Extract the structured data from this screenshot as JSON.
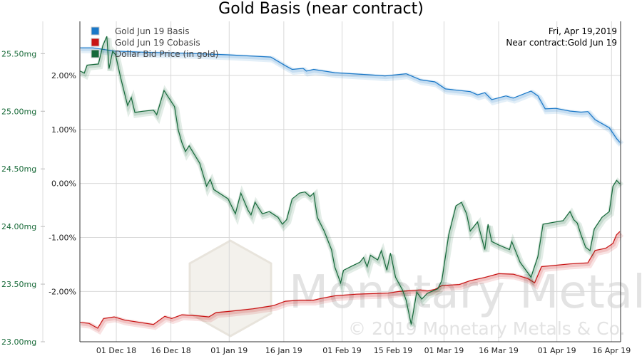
{
  "chart_data": {
    "type": "line",
    "title": "Gold Basis (near contract)",
    "xlabel": "",
    "x_unit": "days since 21 Nov 18",
    "xlim": [
      0,
      148.5
    ],
    "x_ticks": [
      {
        "label": "01 Dec 18",
        "x": 10
      },
      {
        "label": "16 Dec 18",
        "x": 25
      },
      {
        "label": "01 Jan 19",
        "x": 41
      },
      {
        "label": "16 Jan 19",
        "x": 56
      },
      {
        "label": "01 Feb 19",
        "x": 72
      },
      {
        "label": "15 Feb 19",
        "x": 86
      },
      {
        "label": "01 Mar 19",
        "x": 100
      },
      {
        "label": "16 Mar 19",
        "x": 115
      },
      {
        "label": "01 Apr 19",
        "x": 131
      },
      {
        "label": "16 Apr 19",
        "x": 146
      }
    ],
    "y_pct": {
      "ylim": [
        -2.93,
        3.0
      ],
      "ticks": [
        {
          "label": "2.00%",
          "v": 2
        },
        {
          "label": "1.00%",
          "v": 1
        },
        {
          "label": "0.00%",
          "v": 0
        },
        {
          "label": "-1.00%",
          "v": -1
        },
        {
          "label": "-2.00%",
          "v": -2
        }
      ]
    },
    "y_mg": {
      "ylim": [
        23.0,
        25.78
      ],
      "ticks": [
        {
          "label": "25.50mg",
          "v": 25.5
        },
        {
          "label": "25.00mg",
          "v": 25.0
        },
        {
          "label": "24.50mg",
          "v": 24.5
        },
        {
          "label": "24.00mg",
          "v": 24.0
        },
        {
          "label": "23.50mg",
          "v": 23.5
        },
        {
          "label": "23.00mg",
          "v": 23.0
        }
      ]
    },
    "grid": true,
    "legend_position": "top-left",
    "series": [
      {
        "name": "Gold Jun 19 Basis",
        "axis": "pct",
        "color": "#1a78c8",
        "points": [
          [
            0,
            2.51
          ],
          [
            3.5,
            2.51
          ],
          [
            9.4,
            2.45
          ],
          [
            17.2,
            2.43
          ],
          [
            29,
            2.41
          ],
          [
            40.7,
            2.38
          ],
          [
            52.4,
            2.34
          ],
          [
            56.4,
            2.18
          ],
          [
            58.3,
            2.11
          ],
          [
            61.3,
            2.13
          ],
          [
            62.2,
            2.08
          ],
          [
            64.2,
            2.11
          ],
          [
            70,
            2.05
          ],
          [
            79.8,
            2.01
          ],
          [
            83.8,
            1.99
          ],
          [
            89.6,
            2.03
          ],
          [
            93.5,
            1.92
          ],
          [
            97.5,
            1.88
          ],
          [
            100.4,
            1.75
          ],
          [
            107.2,
            1.7
          ],
          [
            109.2,
            1.64
          ],
          [
            111.2,
            1.68
          ],
          [
            113.1,
            1.55
          ],
          [
            117,
            1.62
          ],
          [
            119,
            1.58
          ],
          [
            123.9,
            1.71
          ],
          [
            125.8,
            1.62
          ],
          [
            127.8,
            1.38
          ],
          [
            130.7,
            1.39
          ],
          [
            134.6,
            1.34
          ],
          [
            137.6,
            1.32
          ],
          [
            139.5,
            1.33
          ],
          [
            141.5,
            1.18
          ],
          [
            145.4,
            1.03
          ],
          [
            147.4,
            0.83
          ],
          [
            148.3,
            0.76
          ]
        ]
      },
      {
        "name": "Gold Jun 19 Cobasis",
        "axis": "pct",
        "color": "#c81414",
        "points": [
          [
            0,
            -2.57
          ],
          [
            2.5,
            -2.59
          ],
          [
            4.9,
            -2.68
          ],
          [
            6.5,
            -2.5
          ],
          [
            9.4,
            -2.47
          ],
          [
            12.3,
            -2.53
          ],
          [
            20.2,
            -2.61
          ],
          [
            23.3,
            -2.46
          ],
          [
            25.2,
            -2.5
          ],
          [
            28,
            -2.43
          ],
          [
            32.5,
            -2.45
          ],
          [
            35.4,
            -2.47
          ],
          [
            37.4,
            -2.39
          ],
          [
            40.7,
            -2.37
          ],
          [
            47.6,
            -2.32
          ],
          [
            50.5,
            -2.29
          ],
          [
            53.2,
            -2.26
          ],
          [
            56.4,
            -2.18
          ],
          [
            60.3,
            -2.16
          ],
          [
            64.2,
            -2.16
          ],
          [
            66.1,
            -2.13
          ],
          [
            70,
            -2.08
          ],
          [
            76,
            -2.05
          ],
          [
            79.8,
            -2.04
          ],
          [
            84.7,
            -2.03
          ],
          [
            87.6,
            -2.0
          ],
          [
            93.5,
            -1.97
          ],
          [
            95.4,
            -1.99
          ],
          [
            97.5,
            -1.96
          ],
          [
            99.4,
            -1.89
          ],
          [
            104.2,
            -1.87
          ],
          [
            107.2,
            -1.8
          ],
          [
            111.2,
            -1.74
          ],
          [
            115,
            -1.67
          ],
          [
            119,
            -1.68
          ],
          [
            123,
            -1.76
          ],
          [
            124.9,
            -1.84
          ],
          [
            126.8,
            -1.54
          ],
          [
            134.6,
            -1.49
          ],
          [
            139.5,
            -1.47
          ],
          [
            141.5,
            -1.24
          ],
          [
            144.4,
            -1.2
          ],
          [
            146.4,
            -1.11
          ],
          [
            147.4,
            -0.95
          ],
          [
            148.3,
            -0.89
          ]
        ]
      },
      {
        "name": "Dollar Bid Price (in gold)",
        "axis": "mg",
        "color": "#16693a",
        "points": [
          [
            0,
            25.35
          ],
          [
            1.2,
            25.33
          ],
          [
            2,
            25.4
          ],
          [
            5.1,
            25.41
          ],
          [
            6.3,
            25.57
          ],
          [
            7.4,
            25.65
          ],
          [
            8,
            25.37
          ],
          [
            9,
            25.52
          ],
          [
            9.8,
            25.49
          ],
          [
            11.2,
            25.29
          ],
          [
            13.1,
            25.05
          ],
          [
            14.1,
            25.12
          ],
          [
            15.1,
            24.99
          ],
          [
            17.2,
            25.0
          ],
          [
            20.2,
            25.01
          ],
          [
            21.1,
            24.97
          ],
          [
            23.1,
            25.18
          ],
          [
            26,
            25.04
          ],
          [
            27,
            24.84
          ],
          [
            28,
            24.73
          ],
          [
            29,
            24.65
          ],
          [
            30,
            24.7
          ],
          [
            32.9,
            24.55
          ],
          [
            34.8,
            24.35
          ],
          [
            35.8,
            24.41
          ],
          [
            36.8,
            24.32
          ],
          [
            40.7,
            24.24
          ],
          [
            42.7,
            24.11
          ],
          [
            44.2,
            24.29
          ],
          [
            46.2,
            24.14
          ],
          [
            47,
            24.1
          ],
          [
            48.1,
            24.21
          ],
          [
            50.1,
            24.11
          ],
          [
            52,
            24.13
          ],
          [
            54.4,
            24.08
          ],
          [
            55.6,
            24.02
          ],
          [
            56.8,
            24.06
          ],
          [
            58.3,
            24.24
          ],
          [
            60.3,
            24.29
          ],
          [
            61.8,
            24.3
          ],
          [
            63.2,
            24.26
          ],
          [
            64.2,
            24.29
          ],
          [
            65.2,
            24.08
          ],
          [
            67.1,
            23.96
          ],
          [
            69.1,
            23.8
          ],
          [
            70,
            23.65
          ],
          [
            71.6,
            23.51
          ],
          [
            72.4,
            23.62
          ],
          [
            74.9,
            23.66
          ],
          [
            76.9,
            23.69
          ],
          [
            77.9,
            23.73
          ],
          [
            78.9,
            23.65
          ],
          [
            79.8,
            23.75
          ],
          [
            81.8,
            23.71
          ],
          [
            82.8,
            23.79
          ],
          [
            84.3,
            23.62
          ],
          [
            85.3,
            23.77
          ],
          [
            86.7,
            23.56
          ],
          [
            88.6,
            23.45
          ],
          [
            89.6,
            23.36
          ],
          [
            91,
            23.15
          ],
          [
            92.5,
            23.43
          ],
          [
            93.9,
            23.37
          ],
          [
            95.4,
            23.42
          ],
          [
            98.3,
            23.46
          ],
          [
            99.4,
            23.53
          ],
          [
            101.3,
            23.93
          ],
          [
            103.3,
            24.18
          ],
          [
            104.8,
            24.21
          ],
          [
            106.2,
            24.11
          ],
          [
            107.2,
            23.96
          ],
          [
            109.2,
            24.04
          ],
          [
            111.2,
            23.8
          ],
          [
            112.1,
            24.02
          ],
          [
            113.1,
            23.87
          ],
          [
            115,
            23.84
          ],
          [
            118,
            23.8
          ],
          [
            118.6,
            23.87
          ],
          [
            120.9,
            23.69
          ],
          [
            123.9,
            23.56
          ],
          [
            125.8,
            23.74
          ],
          [
            127.2,
            24.02
          ],
          [
            130.7,
            24.04
          ],
          [
            132.7,
            24.05
          ],
          [
            134.6,
            24.13
          ],
          [
            135.6,
            24.06
          ],
          [
            136.6,
            24.03
          ],
          [
            137.6,
            23.93
          ],
          [
            138.9,
            23.82
          ],
          [
            140.1,
            23.79
          ],
          [
            141.3,
            23.98
          ],
          [
            143.4,
            24.08
          ],
          [
            145.4,
            24.13
          ],
          [
            146.4,
            24.35
          ],
          [
            147.4,
            24.4
          ],
          [
            148.3,
            24.37
          ]
        ]
      }
    ],
    "annotations": [
      "Fri, Apr 19,2019",
      "Near contract:Gold Jun 19"
    ]
  },
  "watermark": {
    "brand": "Monetary Metals",
    "copyright": "© 2019 Monetary Metals & Co."
  }
}
